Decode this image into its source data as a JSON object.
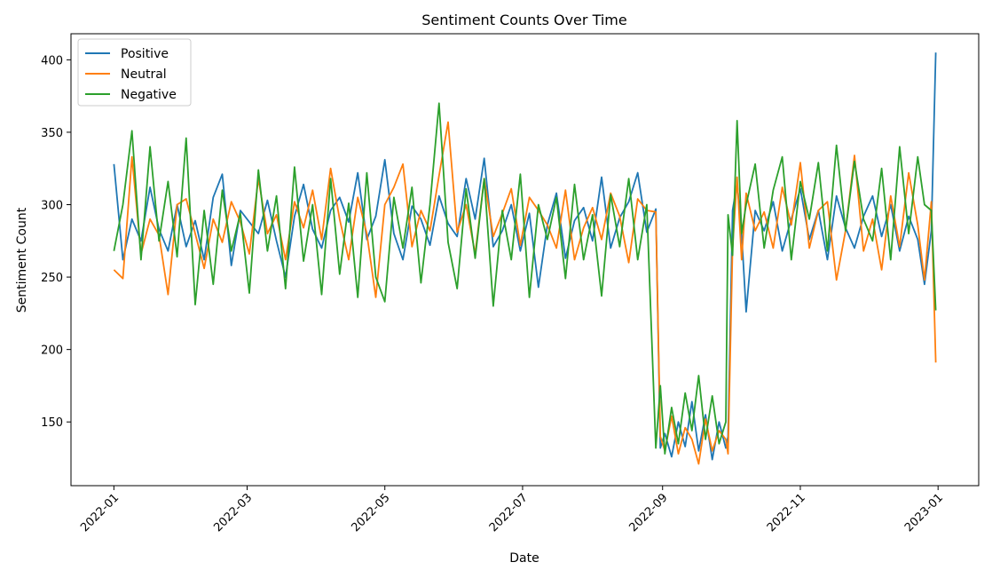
{
  "chart_data": {
    "type": "line",
    "title": "Sentiment Counts Over Time",
    "xlabel": "Date",
    "ylabel": "Sentiment Count",
    "x_axis_type": "date",
    "xlim": [
      "2021-12-13",
      "2023-01-19"
    ],
    "ylim": [
      106,
      418
    ],
    "x_ticks": [
      "2022-01",
      "2022-03",
      "2022-05",
      "2022-07",
      "2022-09",
      "2022-11",
      "2023-01"
    ],
    "x_tick_labels": [
      "2022-01",
      "2022-03",
      "2022-05",
      "2022-07",
      "2022-09",
      "2022-11",
      "2023-01"
    ],
    "y_ticks": [
      150,
      200,
      250,
      300,
      350,
      400
    ],
    "y_tick_labels": [
      "150",
      "200",
      "250",
      "300",
      "350",
      "400"
    ],
    "grid": false,
    "legend_position": "top-left",
    "series": [
      {
        "name": "Positive",
        "color": "#1f77b4",
        "x": [
          "2022-01-01",
          "2022-01-05",
          "2022-01-09",
          "2022-01-13",
          "2022-01-17",
          "2022-01-21",
          "2022-01-25",
          "2022-01-29",
          "2022-02-02",
          "2022-02-06",
          "2022-02-10",
          "2022-02-14",
          "2022-02-18",
          "2022-02-22",
          "2022-02-26",
          "2022-03-02",
          "2022-03-06",
          "2022-03-10",
          "2022-03-14",
          "2022-03-18",
          "2022-03-22",
          "2022-03-26",
          "2022-03-30",
          "2022-04-03",
          "2022-04-07",
          "2022-04-11",
          "2022-04-15",
          "2022-04-19",
          "2022-04-23",
          "2022-04-27",
          "2022-05-01",
          "2022-05-05",
          "2022-05-09",
          "2022-05-13",
          "2022-05-17",
          "2022-05-21",
          "2022-05-25",
          "2022-05-29",
          "2022-06-02",
          "2022-06-06",
          "2022-06-10",
          "2022-06-14",
          "2022-06-18",
          "2022-06-22",
          "2022-06-26",
          "2022-06-30",
          "2022-07-04",
          "2022-07-08",
          "2022-07-12",
          "2022-07-16",
          "2022-07-20",
          "2022-07-24",
          "2022-07-28",
          "2022-08-01",
          "2022-08-05",
          "2022-08-09",
          "2022-08-13",
          "2022-08-17",
          "2022-08-21",
          "2022-08-25",
          "2022-08-29",
          "2022-08-31",
          "2022-09-02",
          "2022-09-05",
          "2022-09-08",
          "2022-09-11",
          "2022-09-14",
          "2022-09-17",
          "2022-09-20",
          "2022-09-23",
          "2022-09-26",
          "2022-09-29",
          "2022-09-30",
          "2022-10-02",
          "2022-10-04",
          "2022-10-06",
          "2022-10-08",
          "2022-10-12",
          "2022-10-16",
          "2022-10-20",
          "2022-10-24",
          "2022-10-28",
          "2022-11-01",
          "2022-11-05",
          "2022-11-09",
          "2022-11-13",
          "2022-11-17",
          "2022-11-21",
          "2022-11-25",
          "2022-11-29",
          "2022-12-03",
          "2022-12-07",
          "2022-12-11",
          "2022-12-15",
          "2022-12-19",
          "2022-12-23",
          "2022-12-26",
          "2022-12-29",
          "2022-12-31"
        ],
        "y": [
          328,
          262,
          290,
          275,
          312,
          283,
          268,
          300,
          271,
          289,
          262,
          305,
          321,
          258,
          296,
          288,
          280,
          303,
          275,
          250,
          292,
          314,
          283,
          270,
          296,
          305,
          288,
          322,
          276,
          292,
          331,
          280,
          262,
          299,
          290,
          272,
          306,
          287,
          278,
          318,
          290,
          332,
          271,
          282,
          300,
          268,
          294,
          243,
          286,
          308,
          263,
          289,
          298,
          275,
          319,
          270,
          291,
          302,
          322,
          281,
          297,
          132,
          142,
          126,
          150,
          133,
          164,
          130,
          155,
          124,
          150,
          132,
          140,
          296,
          315,
          280,
          226,
          296,
          282,
          302,
          268,
          290,
          311,
          276,
          296,
          262,
          306,
          284,
          270,
          292,
          306,
          278,
          300,
          268,
          292,
          276,
          245,
          282,
          405
        ]
      },
      {
        "name": "Neutral",
        "color": "#ff7f0e",
        "x": [
          "2022-01-01",
          "2022-01-05",
          "2022-01-09",
          "2022-01-13",
          "2022-01-17",
          "2022-01-21",
          "2022-01-25",
          "2022-01-29",
          "2022-02-02",
          "2022-02-06",
          "2022-02-10",
          "2022-02-14",
          "2022-02-18",
          "2022-02-22",
          "2022-02-26",
          "2022-03-02",
          "2022-03-06",
          "2022-03-10",
          "2022-03-14",
          "2022-03-18",
          "2022-03-22",
          "2022-03-26",
          "2022-03-30",
          "2022-04-03",
          "2022-04-07",
          "2022-04-11",
          "2022-04-15",
          "2022-04-19",
          "2022-04-23",
          "2022-04-27",
          "2022-05-01",
          "2022-05-05",
          "2022-05-09",
          "2022-05-13",
          "2022-05-17",
          "2022-05-21",
          "2022-05-25",
          "2022-05-29",
          "2022-06-02",
          "2022-06-06",
          "2022-06-10",
          "2022-06-14",
          "2022-06-18",
          "2022-06-22",
          "2022-06-26",
          "2022-06-30",
          "2022-07-04",
          "2022-07-08",
          "2022-07-12",
          "2022-07-16",
          "2022-07-20",
          "2022-07-24",
          "2022-07-28",
          "2022-08-01",
          "2022-08-05",
          "2022-08-09",
          "2022-08-13",
          "2022-08-17",
          "2022-08-21",
          "2022-08-25",
          "2022-08-29",
          "2022-08-31",
          "2022-09-02",
          "2022-09-05",
          "2022-09-08",
          "2022-09-11",
          "2022-09-14",
          "2022-09-17",
          "2022-09-20",
          "2022-09-23",
          "2022-09-26",
          "2022-09-29",
          "2022-09-30",
          "2022-10-02",
          "2022-10-04",
          "2022-10-06",
          "2022-10-08",
          "2022-10-12",
          "2022-10-16",
          "2022-10-20",
          "2022-10-24",
          "2022-10-28",
          "2022-11-01",
          "2022-11-05",
          "2022-11-09",
          "2022-11-13",
          "2022-11-17",
          "2022-11-21",
          "2022-11-25",
          "2022-11-29",
          "2022-12-03",
          "2022-12-07",
          "2022-12-11",
          "2022-12-15",
          "2022-12-19",
          "2022-12-23",
          "2022-12-26",
          "2022-12-29",
          "2022-12-31"
        ],
        "y": [
          255,
          249,
          333,
          266,
          290,
          279,
          238,
          300,
          304,
          280,
          256,
          290,
          274,
          302,
          288,
          266,
          318,
          280,
          293,
          262,
          302,
          284,
          310,
          276,
          325,
          290,
          262,
          305,
          280,
          236,
          300,
          312,
          328,
          271,
          296,
          282,
          320,
          357,
          281,
          300,
          266,
          318,
          278,
          294,
          311,
          272,
          305,
          296,
          286,
          270,
          310,
          262,
          284,
          298,
          276,
          308,
          292,
          260,
          304,
          296,
          295,
          140,
          130,
          154,
          128,
          146,
          138,
          121,
          152,
          130,
          144,
          138,
          128,
          270,
          319,
          262,
          308,
          282,
          295,
          270,
          312,
          286,
          329,
          270,
          296,
          302,
          248,
          282,
          334,
          268,
          290,
          255,
          306,
          271,
          322,
          286,
          248,
          302,
          191
        ]
      },
      {
        "name": "Negative",
        "color": "#2ca02c",
        "x": [
          "2022-01-01",
          "2022-01-05",
          "2022-01-09",
          "2022-01-13",
          "2022-01-17",
          "2022-01-21",
          "2022-01-25",
          "2022-01-29",
          "2022-02-02",
          "2022-02-06",
          "2022-02-10",
          "2022-02-14",
          "2022-02-18",
          "2022-02-22",
          "2022-02-26",
          "2022-03-02",
          "2022-03-06",
          "2022-03-10",
          "2022-03-14",
          "2022-03-18",
          "2022-03-22",
          "2022-03-26",
          "2022-03-30",
          "2022-04-03",
          "2022-04-07",
          "2022-04-11",
          "2022-04-15",
          "2022-04-19",
          "2022-04-23",
          "2022-04-27",
          "2022-05-01",
          "2022-05-05",
          "2022-05-09",
          "2022-05-13",
          "2022-05-17",
          "2022-05-21",
          "2022-05-25",
          "2022-05-29",
          "2022-06-02",
          "2022-06-06",
          "2022-06-10",
          "2022-06-14",
          "2022-06-18",
          "2022-06-22",
          "2022-06-26",
          "2022-06-30",
          "2022-07-04",
          "2022-07-08",
          "2022-07-12",
          "2022-07-16",
          "2022-07-20",
          "2022-07-24",
          "2022-07-28",
          "2022-08-01",
          "2022-08-05",
          "2022-08-09",
          "2022-08-13",
          "2022-08-17",
          "2022-08-21",
          "2022-08-25",
          "2022-08-29",
          "2022-08-31",
          "2022-09-02",
          "2022-09-05",
          "2022-09-08",
          "2022-09-11",
          "2022-09-14",
          "2022-09-17",
          "2022-09-20",
          "2022-09-23",
          "2022-09-26",
          "2022-09-29",
          "2022-09-30",
          "2022-10-02",
          "2022-10-04",
          "2022-10-06",
          "2022-10-08",
          "2022-10-12",
          "2022-10-16",
          "2022-10-20",
          "2022-10-24",
          "2022-10-28",
          "2022-11-01",
          "2022-11-05",
          "2022-11-09",
          "2022-11-13",
          "2022-11-17",
          "2022-11-21",
          "2022-11-25",
          "2022-11-29",
          "2022-12-03",
          "2022-12-07",
          "2022-12-11",
          "2022-12-15",
          "2022-12-19",
          "2022-12-23",
          "2022-12-26",
          "2022-12-29",
          "2022-12-31"
        ],
        "y": [
          268,
          300,
          351,
          262,
          340,
          275,
          316,
          264,
          346,
          231,
          296,
          245,
          310,
          268,
          294,
          239,
          324,
          268,
          306,
          242,
          326,
          261,
          300,
          238,
          318,
          252,
          301,
          236,
          322,
          250,
          233,
          305,
          270,
          312,
          246,
          300,
          370,
          274,
          242,
          311,
          263,
          318,
          230,
          296,
          262,
          321,
          236,
          300,
          276,
          305,
          249,
          314,
          262,
          293,
          237,
          307,
          271,
          318,
          262,
          300,
          132,
          175,
          128,
          160,
          135,
          170,
          144,
          182,
          138,
          168,
          135,
          150,
          293,
          265,
          358,
          280,
          300,
          328,
          270,
          310,
          333,
          262,
          316,
          290,
          329,
          268,
          341,
          282,
          330,
          290,
          275,
          325,
          262,
          340,
          280,
          333,
          300,
          296,
          227
        ]
      }
    ]
  }
}
